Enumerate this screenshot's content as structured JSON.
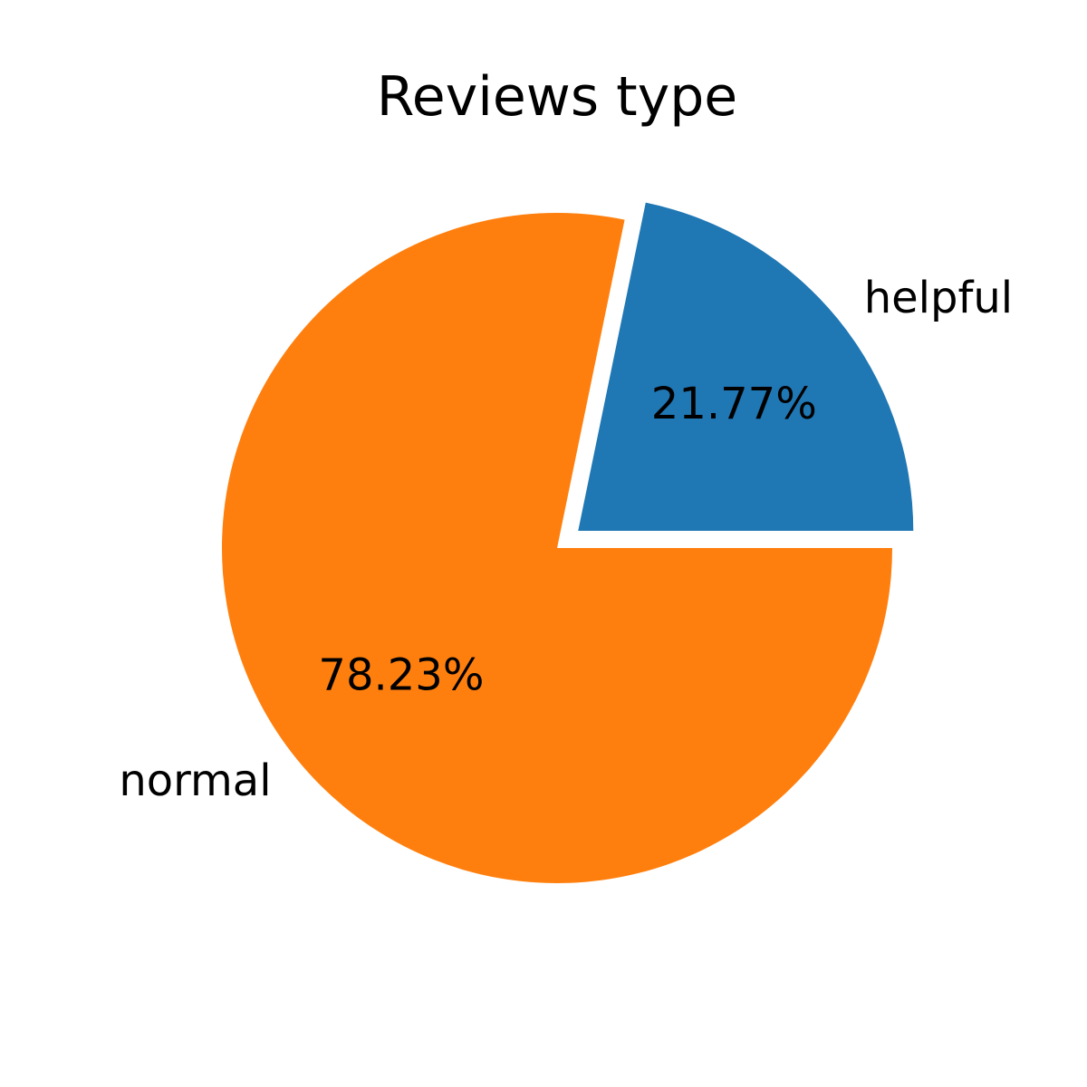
{
  "chart_data": {
    "type": "pie",
    "title": "Reviews type",
    "slices": [
      {
        "label": "helpful",
        "value": 21.77,
        "pct_label": "21.77%",
        "color": "#1f77b4",
        "exploded": true
      },
      {
        "label": "normal",
        "value": 78.23,
        "pct_label": "78.23%",
        "color": "#ff7f0e",
        "exploded": false
      }
    ],
    "start_angle_deg": 0,
    "direction": "counterclockwise"
  }
}
